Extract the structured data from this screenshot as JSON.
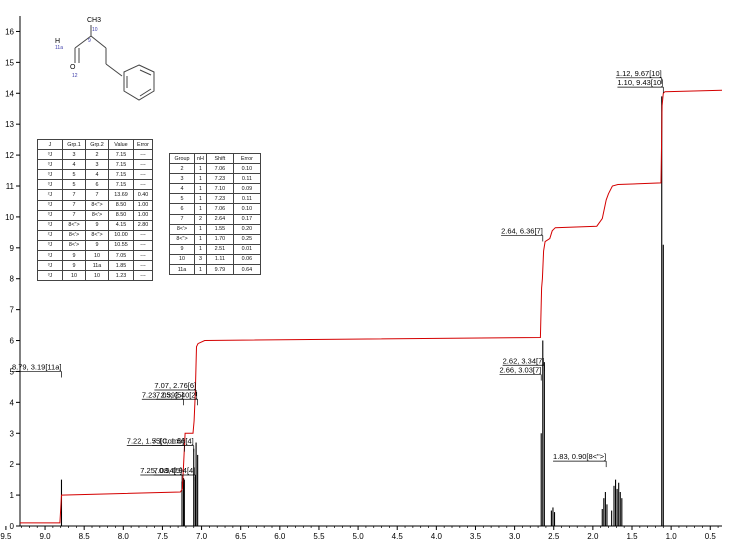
{
  "chart_data": {
    "type": "line",
    "xlim": [
      9.32,
      0.35
    ],
    "ylim": [
      0,
      16.5
    ],
    "x_ticks": [
      "9.5",
      "9.0",
      "8.5",
      "8.0",
      "7.5",
      "7.0",
      "6.5",
      "6.0",
      "5.5",
      "5.0",
      "4.5",
      "4.0",
      "3.5",
      "3.0",
      "2.5",
      "2.0",
      "1.5",
      "1.0",
      "0.5"
    ],
    "y_ticks": [
      "0",
      "1",
      "2",
      "3",
      "4",
      "5",
      "6",
      "7",
      "8",
      "9",
      "10",
      "11",
      "12",
      "13",
      "14",
      "15",
      "16"
    ],
    "peaks": [
      {
        "x": 8.79,
        "y": 1.5
      },
      {
        "x": 7.25,
        "y": 1.45
      },
      {
        "x": 7.23,
        "y": 1.55
      },
      {
        "x": 7.22,
        "y": 1.5
      },
      {
        "x": 7.1,
        "y": 2.5
      },
      {
        "x": 7.08,
        "y": 1.6
      },
      {
        "x": 7.07,
        "y": 2.7
      },
      {
        "x": 7.05,
        "y": 2.3
      },
      {
        "x": 2.66,
        "y": 3.0
      },
      {
        "x": 2.64,
        "y": 6.0
      },
      {
        "x": 2.62,
        "y": 5.3
      },
      {
        "x": 2.53,
        "y": 0.5
      },
      {
        "x": 2.51,
        "y": 0.6
      },
      {
        "x": 2.49,
        "y": 0.45
      },
      {
        "x": 1.88,
        "y": 0.55
      },
      {
        "x": 1.86,
        "y": 0.9
      },
      {
        "x": 1.84,
        "y": 1.1
      },
      {
        "x": 1.82,
        "y": 0.7
      },
      {
        "x": 1.76,
        "y": 0.5
      },
      {
        "x": 1.73,
        "y": 1.3
      },
      {
        "x": 1.71,
        "y": 1.5
      },
      {
        "x": 1.69,
        "y": 1.2
      },
      {
        "x": 1.67,
        "y": 1.4
      },
      {
        "x": 1.65,
        "y": 1.1
      },
      {
        "x": 1.63,
        "y": 0.9
      },
      {
        "x": 1.12,
        "y": 13.9
      },
      {
        "x": 1.1,
        "y": 9.1
      }
    ],
    "integral": [
      [
        9.32,
        0.1
      ],
      [
        8.81,
        0.1
      ],
      [
        8.79,
        1.0
      ],
      [
        7.27,
        1.1
      ],
      [
        7.245,
        1.2
      ],
      [
        7.21,
        3.0
      ],
      [
        7.11,
        3.0
      ],
      [
        7.095,
        3.4
      ],
      [
        7.08,
        4.3
      ],
      [
        7.065,
        5.8
      ],
      [
        7.045,
        5.9
      ],
      [
        6.96,
        6.0
      ],
      [
        2.67,
        6.1
      ],
      [
        2.655,
        7.7
      ],
      [
        2.645,
        8.0
      ],
      [
        2.63,
        8.9
      ],
      [
        2.61,
        9.2
      ],
      [
        2.55,
        9.3
      ],
      [
        2.52,
        9.55
      ],
      [
        2.48,
        9.65
      ],
      [
        1.95,
        9.7
      ],
      [
        1.88,
        9.95
      ],
      [
        1.83,
        10.55
      ],
      [
        1.8,
        10.75
      ],
      [
        1.75,
        11.0
      ],
      [
        1.68,
        11.05
      ],
      [
        1.13,
        11.1
      ],
      [
        1.115,
        13.6
      ],
      [
        1.1,
        14.0
      ],
      [
        1.08,
        14.05
      ],
      [
        0.35,
        14.1
      ]
    ],
    "annotations": [
      {
        "text": "8.79, 3.19[11a]",
        "x": 8.79,
        "y": 5.0
      },
      {
        "text": "7.07, 2.76[6]",
        "x": 7.07,
        "y": 4.4
      },
      {
        "text": "7.23, 2.39[5]",
        "x": 7.23,
        "y": 4.1
      },
      {
        "text": "7.05, 2.40[2]",
        "x": 7.05,
        "y": 4.1
      },
      {
        "text": "7.22, 1.55[Comb]",
        "x": 7.22,
        "y": 2.6
      },
      {
        "text": "7.10, 1.56[4]",
        "x": 7.1,
        "y": 2.6
      },
      {
        "text": "7.25, 0.94[5]",
        "x": 7.25,
        "y": 1.65
      },
      {
        "text": "7.08, 0.94[4]",
        "x": 7.08,
        "y": 1.65
      },
      {
        "text": "2.64, 6.36[7]",
        "x": 2.64,
        "y": 9.4
      },
      {
        "text": "2.62, 3.34[7]",
        "x": 2.62,
        "y": 5.2
      },
      {
        "text": "2.66, 3.03[7]",
        "x": 2.66,
        "y": 4.9
      },
      {
        "text": "1.83, 0.90[8<\">]",
        "x": 1.83,
        "y": 2.1
      },
      {
        "text": "1.12, 9.67[10]",
        "x": 1.12,
        "y": 14.5
      },
      {
        "text": "1.10, 9.43[10]",
        "x": 1.1,
        "y": 14.2
      }
    ]
  },
  "molecule": {
    "labels": [
      "CH3",
      "H",
      "11a",
      "O",
      "12",
      "10",
      "9"
    ]
  },
  "coupling_table": {
    "headers": [
      "J",
      "Grp.1",
      "Grp.2",
      "Value",
      "Error"
    ],
    "rows": [
      [
        "³J",
        "3",
        "2",
        "7.15",
        "---"
      ],
      [
        "³J",
        "4",
        "3",
        "7.15",
        "---"
      ],
      [
        "³J",
        "5",
        "4",
        "7.15",
        "---"
      ],
      [
        "³J",
        "5",
        "6",
        "7.15",
        "---"
      ],
      [
        "²J",
        "7",
        "7",
        "13.69",
        "0.40"
      ],
      [
        "³J",
        "7",
        "8<\">",
        "8.50",
        "1.00"
      ],
      [
        "³J",
        "7",
        "8<'>",
        "8.50",
        "1.00"
      ],
      [
        "³J",
        "8<\">",
        "9",
        "4.15",
        "2.80"
      ],
      [
        "²J",
        "8<'>",
        "8<\">",
        "10.00",
        "---"
      ],
      [
        "³J",
        "8<'>",
        "9",
        "10.55",
        "---"
      ],
      [
        "³J",
        "9",
        "10",
        "7.05",
        "---"
      ],
      [
        "³J",
        "9",
        "11a",
        "1.85",
        "---"
      ],
      [
        "³J",
        "10",
        "10",
        "1.23",
        "---"
      ]
    ]
  },
  "shift_table": {
    "headers": [
      "Group",
      "nH",
      "Shift",
      "Error"
    ],
    "rows": [
      [
        "2",
        "1",
        "7.06",
        "0.10"
      ],
      [
        "3",
        "1",
        "7.23",
        "0.11"
      ],
      [
        "4",
        "1",
        "7.10",
        "0.09"
      ],
      [
        "5",
        "1",
        "7.23",
        "0.11"
      ],
      [
        "6",
        "1",
        "7.06",
        "0.10"
      ],
      [
        "7",
        "2",
        "2.64",
        "0.17"
      ],
      [
        "8<'>",
        "1",
        "1.55",
        "0.20"
      ],
      [
        "8<\">",
        "1",
        "1.70",
        "0.25"
      ],
      [
        "9",
        "1",
        "2.51",
        "0.01"
      ],
      [
        "10",
        "3",
        "1.11",
        "0.06"
      ],
      [
        "11a",
        "1",
        "9.79",
        "0.64"
      ]
    ]
  }
}
